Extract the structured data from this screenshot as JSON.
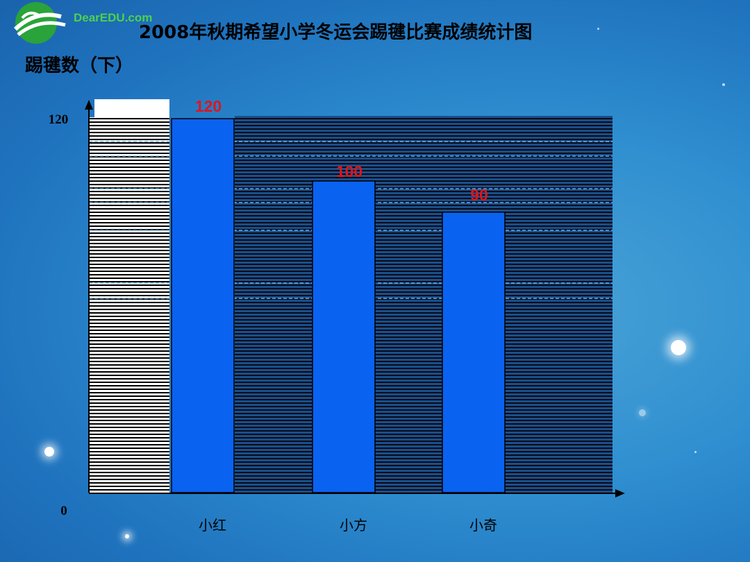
{
  "logo": {
    "text": "DearEDU.com",
    "name": "deareedu-logo-icon"
  },
  "title": "2008年秋期希望小学冬运会踢毽比赛成绩统计图",
  "ylabel": "踢毽数（下）",
  "colors": {
    "bar": "#0a62f0",
    "bar_edge": "#000000",
    "value_label": "#e0141c",
    "background": "#2f8fd0"
  },
  "chart_data": {
    "type": "bar",
    "title": "2008年秋期希望小学冬运会踢毽比赛成绩统计图",
    "ylabel": "踢毽数（下）",
    "xlabel": "",
    "categories": [
      "小红",
      "小方",
      "小奇"
    ],
    "values": [
      120,
      100,
      90
    ],
    "data_labels": [
      "120",
      "100",
      "90"
    ],
    "yticks": [
      "0",
      "120"
    ],
    "ylim": [
      0,
      120
    ],
    "grid": true
  }
}
